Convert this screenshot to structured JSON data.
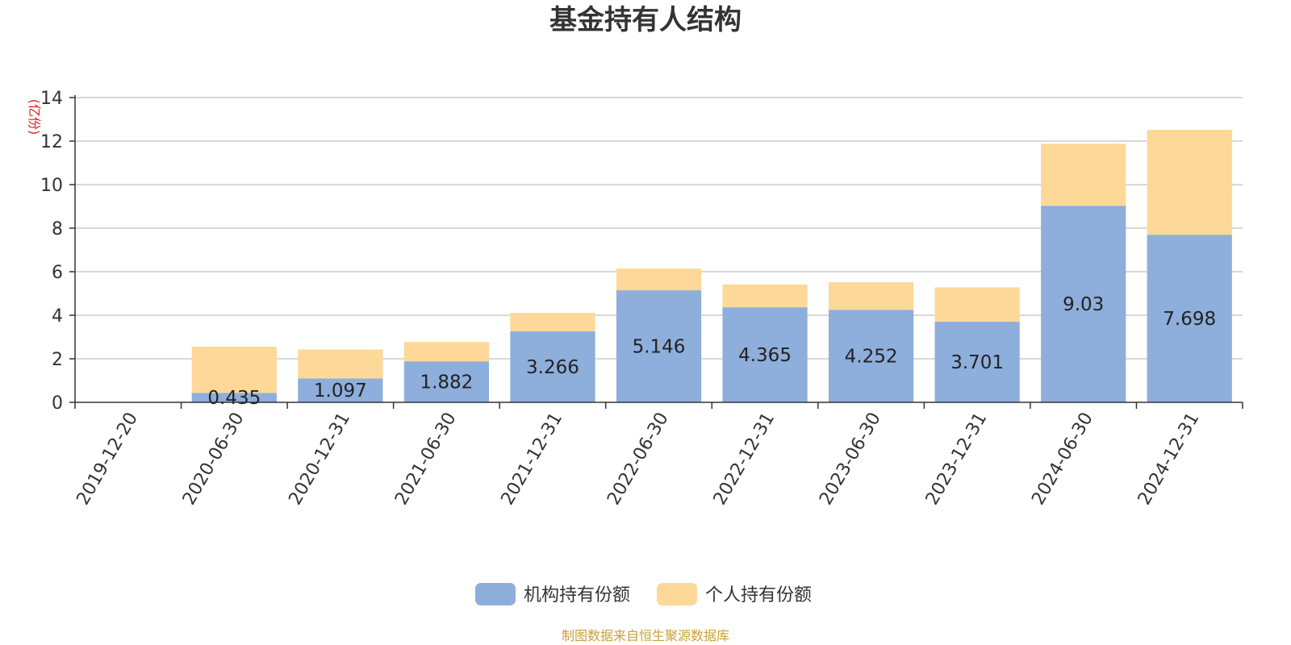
{
  "chart_data": {
    "type": "bar",
    "stacked": true,
    "title": "基金持有人结构",
    "ylabel": "(亿份)",
    "ylim": [
      0,
      14
    ],
    "yticks": [
      0,
      2,
      4,
      6,
      8,
      10,
      12,
      14
    ],
    "grid": true,
    "legend_position": "bottom",
    "categories": [
      "2019-12-20",
      "2020-06-30",
      "2020-12-31",
      "2021-06-30",
      "2021-12-31",
      "2022-06-30",
      "2022-12-31",
      "2023-06-30",
      "2023-12-31",
      "2024-06-30",
      "2024-12-31"
    ],
    "series": [
      {
        "name": "机构持有份额",
        "color": "#8eaedb",
        "values": [
          0,
          0.435,
          1.097,
          1.882,
          3.266,
          5.146,
          4.365,
          4.252,
          3.701,
          9.03,
          7.698
        ],
        "labels": [
          "",
          "0.435",
          "1.097",
          "1.882",
          "3.266",
          "5.146",
          "4.365",
          "4.252",
          "3.701",
          "9.03",
          "7.698"
        ]
      },
      {
        "name": "个人持有份额",
        "color": "#fed898",
        "values": [
          0,
          2.12,
          1.33,
          0.89,
          0.84,
          1.0,
          1.05,
          1.26,
          1.58,
          2.85,
          4.82
        ]
      }
    ],
    "source": "制图数据来自恒生聚源数据库"
  }
}
